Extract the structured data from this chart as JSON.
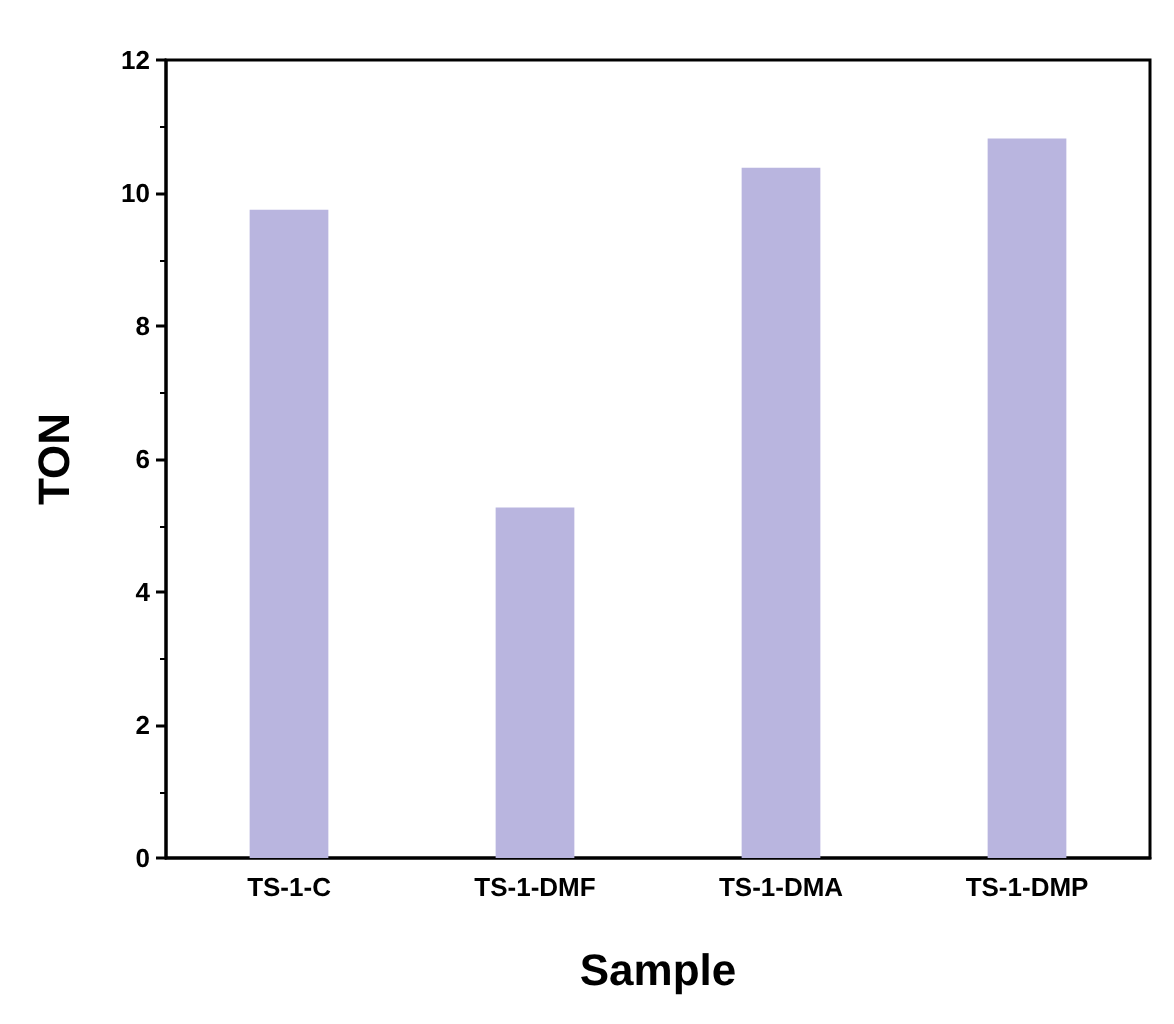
{
  "chart_data": {
    "type": "bar",
    "xlabel": "Sample",
    "ylabel": "TON",
    "categories": [
      "TS-1-C",
      "TS-1-DMF",
      "TS-1-DMA",
      "TS-1-DMP"
    ],
    "values": [
      9.75,
      5.27,
      10.38,
      10.82
    ],
    "color": "#b9b5df",
    "ylim": [
      0,
      12
    ],
    "yticks": [
      0,
      2,
      4,
      6,
      8,
      10,
      12
    ],
    "grid": false
  }
}
